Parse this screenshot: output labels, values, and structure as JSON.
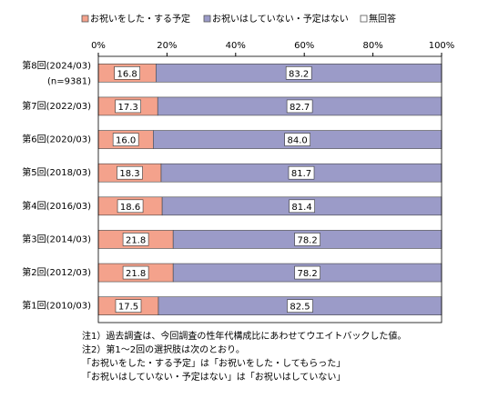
{
  "chart_data": {
    "type": "bar",
    "orientation": "horizontal",
    "stacked": true,
    "categories": [
      "第8回(2024/03)",
      "第7回(2022/03)",
      "第6回(2020/03)",
      "第5回(2018/03)",
      "第4回(2016/03)",
      "第3回(2014/03)",
      "第2回(2012/03)",
      "第1回(2010/03)"
    ],
    "category_note": "(n=9381)",
    "series": [
      {
        "name": "お祝いをした・する予定",
        "color": "#f4a28c",
        "values": [
          16.8,
          17.3,
          16.0,
          18.3,
          18.6,
          21.8,
          21.8,
          17.5
        ],
        "value_labels": [
          "16.8",
          "17.3",
          "16.0",
          "18.3",
          "18.6",
          "21.8",
          "21.8",
          "17.5"
        ]
      },
      {
        "name": "お祝いはしていない・予定はない",
        "color": "#9b9bc8",
        "values": [
          83.2,
          82.7,
          84.0,
          81.7,
          81.4,
          78.2,
          78.2,
          82.5
        ],
        "value_labels": [
          "83.2",
          "82.7",
          "84.0",
          "81.7",
          "81.4",
          "78.2",
          "78.2",
          "82.5"
        ]
      },
      {
        "name": "無回答",
        "color": "#ffffff",
        "values": [
          0,
          0,
          0,
          0,
          0,
          0,
          0,
          0
        ]
      }
    ],
    "xlim": [
      0,
      100
    ],
    "xticks": [
      {
        "value": 0,
        "label": "0%"
      },
      {
        "value": 20,
        "label": "20%"
      },
      {
        "value": 40,
        "label": "40%"
      },
      {
        "value": 60,
        "label": "60%"
      },
      {
        "value": 80,
        "label": "80%"
      },
      {
        "value": 100,
        "label": "100%"
      }
    ],
    "notes": [
      "注1）過去調査は、今回調査の性年代構成比にあわせてウエイトバックした値。",
      "注2）第1～2回の選択肢は次のとおり。",
      "「お祝いをした・する予定」は「お祝いをした・してもらった」",
      "「お祝いはしていない・予定はない」は「お祝いはしていない」"
    ]
  }
}
